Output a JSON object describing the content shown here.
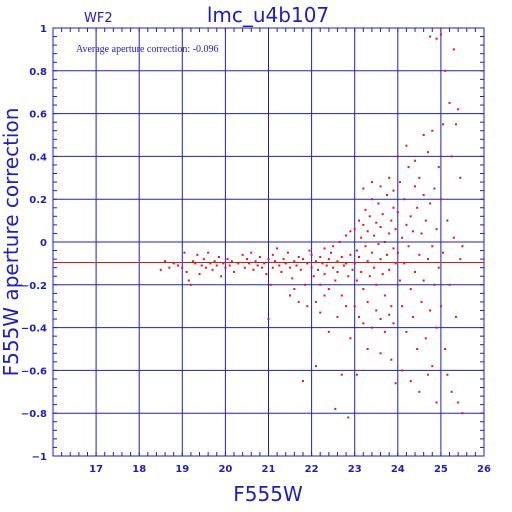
{
  "header": {
    "camera": "WF2",
    "title": "lmc_u4b107"
  },
  "annotation": "Average aperture correction: -0.096",
  "chart_data": {
    "type": "scatter",
    "title": "lmc_u4b107",
    "xlabel": "F555W",
    "ylabel": "F555W aperture correction",
    "xlim": [
      16,
      26
    ],
    "ylim": [
      -1,
      1
    ],
    "x_ticks": [
      "17",
      "18",
      "19",
      "20",
      "21",
      "22",
      "23",
      "24",
      "25",
      "26"
    ],
    "y_ticks": [
      "1",
      "0.8",
      "0.6",
      "0.4",
      "0.2",
      "0",
      "−0.2",
      "−0.4",
      "−0.6",
      "−0.8",
      "−1"
    ],
    "grid": true,
    "reference_line": {
      "y": -0.096
    },
    "colors": {
      "axes": "#1d1dc8",
      "points": "#ee1111",
      "reference": "#ee1111"
    },
    "series": [
      {
        "points": [
          [
            18.5,
            -0.13
          ],
          [
            18.7,
            -0.12
          ],
          [
            18.6,
            -0.09
          ],
          [
            18.8,
            -0.1
          ],
          [
            18.9,
            -0.11
          ],
          [
            19.0,
            -0.12
          ],
          [
            19.05,
            -0.05
          ],
          [
            19.1,
            -0.14
          ],
          [
            19.15,
            -0.18
          ],
          [
            19.2,
            -0.2
          ],
          [
            19.25,
            -0.09
          ],
          [
            19.3,
            -0.1
          ],
          [
            19.35,
            -0.06
          ],
          [
            19.4,
            -0.15
          ],
          [
            19.45,
            -0.11
          ],
          [
            19.5,
            -0.08
          ],
          [
            19.55,
            -0.12
          ],
          [
            19.6,
            -0.05
          ],
          [
            19.65,
            -0.1
          ],
          [
            19.7,
            -0.13
          ],
          [
            19.75,
            -0.09
          ],
          [
            19.8,
            -0.11
          ],
          [
            19.85,
            -0.07
          ],
          [
            19.9,
            -0.16
          ],
          [
            19.95,
            -0.1
          ],
          [
            20.0,
            -0.12
          ],
          [
            20.05,
            -0.08
          ],
          [
            20.1,
            -0.11
          ],
          [
            20.15,
            -0.09
          ],
          [
            20.2,
            -0.14
          ],
          [
            20.3,
            -0.1
          ],
          [
            20.4,
            -0.06
          ],
          [
            20.45,
            -0.12
          ],
          [
            20.5,
            -0.08
          ],
          [
            20.55,
            -0.1
          ],
          [
            20.6,
            -0.05
          ],
          [
            20.65,
            -0.13
          ],
          [
            20.7,
            -0.09
          ],
          [
            20.75,
            -0.11
          ],
          [
            20.8,
            -0.07
          ],
          [
            20.85,
            -0.12
          ],
          [
            20.9,
            -0.1
          ],
          [
            20.95,
            -0.15
          ],
          [
            21.0,
            -0.08
          ],
          [
            21.0,
            -0.36
          ],
          [
            21.05,
            -0.2
          ],
          [
            21.1,
            -0.06
          ],
          [
            21.1,
            -0.12
          ],
          [
            21.15,
            -0.09
          ],
          [
            21.2,
            -0.03
          ],
          [
            21.25,
            -0.11
          ],
          [
            21.3,
            -0.14
          ],
          [
            21.35,
            -0.08
          ],
          [
            21.4,
            -0.1
          ],
          [
            21.45,
            -0.05
          ],
          [
            21.5,
            -0.12
          ],
          [
            21.55,
            -0.17
          ],
          [
            21.6,
            -0.09
          ],
          [
            21.65,
            -0.11
          ],
          [
            21.7,
            -0.07
          ],
          [
            21.75,
            -0.13
          ],
          [
            21.8,
            -0.08
          ],
          [
            21.85,
            -0.2
          ],
          [
            21.9,
            -0.1
          ],
          [
            21.95,
            -0.04
          ],
          [
            21.5,
            -0.25
          ],
          [
            21.7,
            -0.28
          ],
          [
            21.9,
            -0.3
          ],
          [
            21.8,
            -0.65
          ],
          [
            21.6,
            -0.22
          ],
          [
            22.0,
            -0.12
          ],
          [
            22.0,
            -0.06
          ],
          [
            22.05,
            -0.16
          ],
          [
            22.1,
            -0.09
          ],
          [
            22.1,
            -0.28
          ],
          [
            22.15,
            -0.13
          ],
          [
            22.2,
            -0.07
          ],
          [
            22.2,
            -0.2
          ],
          [
            22.25,
            -0.1
          ],
          [
            22.3,
            -0.03
          ],
          [
            22.3,
            -0.15
          ],
          [
            22.35,
            -0.11
          ],
          [
            22.4,
            -0.08
          ],
          [
            22.4,
            -0.22
          ],
          [
            22.45,
            -0.05
          ],
          [
            22.5,
            -0.12
          ],
          [
            22.5,
            -0.02
          ],
          [
            22.55,
            -0.18
          ],
          [
            22.6,
            -0.09
          ],
          [
            22.6,
            -0.14
          ],
          [
            22.65,
            0.0
          ],
          [
            22.7,
            -0.07
          ],
          [
            22.7,
            -0.25
          ],
          [
            22.75,
            -0.11
          ],
          [
            22.8,
            0.03
          ],
          [
            22.8,
            -0.1
          ],
          [
            22.85,
            -0.16
          ],
          [
            22.9,
            -0.06
          ],
          [
            22.9,
            0.05
          ],
          [
            22.95,
            -0.13
          ],
          [
            22.1,
            -0.58
          ],
          [
            22.2,
            -0.33
          ],
          [
            22.4,
            -0.42
          ],
          [
            22.6,
            -0.35
          ],
          [
            22.7,
            -0.62
          ],
          [
            22.8,
            -0.3
          ],
          [
            22.9,
            -0.45
          ],
          [
            22.3,
            -0.25
          ],
          [
            22.55,
            -0.78
          ],
          [
            22.85,
            -0.82
          ],
          [
            23.0,
            -0.1
          ],
          [
            23.0,
            0.06
          ],
          [
            23.05,
            -0.04
          ],
          [
            23.05,
            -0.18
          ],
          [
            23.1,
            0.1
          ],
          [
            23.1,
            -0.07
          ],
          [
            23.15,
            0.02
          ],
          [
            23.15,
            -0.14
          ],
          [
            23.2,
            0.08
          ],
          [
            23.2,
            -0.22
          ],
          [
            23.25,
            -0.02
          ],
          [
            23.25,
            0.15
          ],
          [
            23.3,
            -0.09
          ],
          [
            23.3,
            0.05
          ],
          [
            23.35,
            -0.16
          ],
          [
            23.35,
            0.12
          ],
          [
            23.4,
            -0.05
          ],
          [
            23.4,
            0.2
          ],
          [
            23.45,
            -0.12
          ],
          [
            23.45,
            0.03
          ],
          [
            23.5,
            0.09
          ],
          [
            23.5,
            -0.2
          ],
          [
            23.55,
            -0.01
          ],
          [
            23.55,
            0.18
          ],
          [
            23.6,
            -0.08
          ],
          [
            23.6,
            0.07
          ],
          [
            23.65,
            -0.15
          ],
          [
            23.65,
            0.13
          ],
          [
            23.7,
            0.0
          ],
          [
            23.7,
            -0.25
          ],
          [
            23.75,
            0.22
          ],
          [
            23.75,
            -0.06
          ],
          [
            23.8,
            0.04
          ],
          [
            23.8,
            -0.13
          ],
          [
            23.85,
            0.1
          ],
          [
            23.85,
            -0.3
          ],
          [
            23.9,
            -0.03
          ],
          [
            23.9,
            0.16
          ],
          [
            23.95,
            -0.1
          ],
          [
            23.95,
            0.06
          ],
          [
            23.0,
            -0.3
          ],
          [
            23.1,
            -0.35
          ],
          [
            23.2,
            -0.38
          ],
          [
            23.3,
            -0.28
          ],
          [
            23.4,
            -0.4
          ],
          [
            23.5,
            -0.32
          ],
          [
            23.6,
            -0.36
          ],
          [
            23.7,
            -0.42
          ],
          [
            23.8,
            -0.34
          ],
          [
            23.9,
            -0.38
          ],
          [
            23.05,
            -0.62
          ],
          [
            23.3,
            -0.5
          ],
          [
            23.6,
            -0.52
          ],
          [
            23.85,
            -0.55
          ],
          [
            23.95,
            -0.66
          ],
          [
            23.2,
            0.25
          ],
          [
            23.4,
            0.28
          ],
          [
            23.6,
            0.26
          ],
          [
            23.8,
            0.3
          ],
          [
            23.9,
            0.24
          ],
          [
            24.0,
            -0.05
          ],
          [
            24.0,
            0.14
          ],
          [
            24.05,
            -0.18
          ],
          [
            24.05,
            0.28
          ],
          [
            24.1,
            0.02
          ],
          [
            24.1,
            -0.3
          ],
          [
            24.15,
            0.2
          ],
          [
            24.15,
            -0.1
          ],
          [
            24.2,
            0.08
          ],
          [
            24.2,
            -0.42
          ],
          [
            24.25,
            0.35
          ],
          [
            24.25,
            -0.02
          ],
          [
            24.3,
            -0.22
          ],
          [
            24.3,
            0.12
          ],
          [
            24.35,
            -0.35
          ],
          [
            24.35,
            0.05
          ],
          [
            24.4,
            0.26
          ],
          [
            24.4,
            -0.14
          ],
          [
            24.45,
            -0.5
          ],
          [
            24.45,
            0.16
          ],
          [
            24.5,
            -0.06
          ],
          [
            24.5,
            0.3
          ],
          [
            24.55,
            -0.28
          ],
          [
            24.55,
            0.04
          ],
          [
            24.6,
            0.22
          ],
          [
            24.6,
            -0.18
          ],
          [
            24.65,
            -0.45
          ],
          [
            24.65,
            0.1
          ],
          [
            24.7,
            0.42
          ],
          [
            24.7,
            -0.08
          ],
          [
            24.75,
            -0.32
          ],
          [
            24.75,
            0.18
          ],
          [
            24.8,
            -0.02
          ],
          [
            24.8,
            -0.58
          ],
          [
            24.85,
            0.25
          ],
          [
            24.85,
            -0.2
          ],
          [
            24.9,
            0.06
          ],
          [
            24.9,
            -0.4
          ],
          [
            24.95,
            0.35
          ],
          [
            24.95,
            -0.12
          ],
          [
            24.0,
            0.4
          ],
          [
            24.1,
            -0.6
          ],
          [
            24.2,
            0.45
          ],
          [
            24.3,
            -0.65
          ],
          [
            24.4,
            0.38
          ],
          [
            24.5,
            -0.7
          ],
          [
            24.6,
            0.5
          ],
          [
            24.7,
            -0.62
          ],
          [
            24.8,
            0.52
          ],
          [
            24.9,
            -0.75
          ],
          [
            25.0,
            0.2
          ],
          [
            25.0,
            -0.3
          ],
          [
            25.05,
            0.55
          ],
          [
            25.05,
            -0.05
          ],
          [
            25.1,
            0.8
          ],
          [
            25.1,
            -0.5
          ],
          [
            25.15,
            0.1
          ],
          [
            25.15,
            -0.62
          ],
          [
            25.2,
            0.65
          ],
          [
            25.2,
            -0.2
          ],
          [
            25.25,
            0.4
          ],
          [
            25.25,
            -0.7
          ],
          [
            25.3,
            0.9
          ],
          [
            25.3,
            0.02
          ],
          [
            25.35,
            0.55
          ],
          [
            25.35,
            -0.35
          ],
          [
            25.4,
            0.62
          ],
          [
            25.4,
            -0.75
          ],
          [
            25.45,
            0.3
          ],
          [
            25.45,
            -0.08
          ],
          [
            25.5,
            -0.02
          ],
          [
            25.5,
            -0.8
          ],
          [
            24.9,
            0.95
          ],
          [
            25.0,
            0.97
          ],
          [
            24.75,
            0.96
          ]
        ]
      }
    ]
  }
}
